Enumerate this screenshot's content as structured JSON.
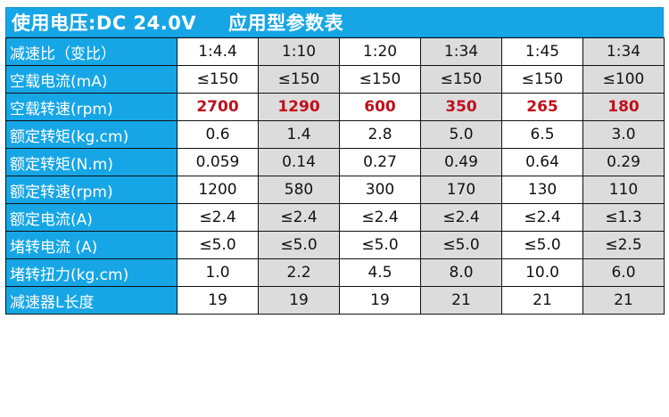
{
  "header": {
    "voltage_label": "使用电压:DC 24.0V",
    "table_title": "应用型参数表"
  },
  "rows": [
    {
      "label": "减速比（变比）",
      "values": [
        "1:4.4",
        "1:10",
        "1:20",
        "1:34",
        "1:45",
        "1:34"
      ]
    },
    {
      "label": "空载电流(mA)",
      "values": [
        "≤150",
        "≤150",
        "≤150",
        "≤150",
        "≤150",
        "≤100"
      ]
    },
    {
      "label": "空载转速(rpm)",
      "values": [
        "2700",
        "1290",
        "600",
        "350",
        "265",
        "180"
      ]
    },
    {
      "label": "额定转矩(kg.cm)",
      "values": [
        "0.6",
        "1.4",
        "2.8",
        "5.0",
        "6.5",
        "3.0"
      ]
    },
    {
      "label": "额定转矩(N.m)",
      "values": [
        "0.059",
        "0.14",
        "0.27",
        "0.49",
        "0.64",
        "0.29"
      ]
    },
    {
      "label": "额定转速(rpm)",
      "values": [
        "1200",
        "580",
        "300",
        "170",
        "130",
        "110"
      ]
    },
    {
      "label": "额定电流(A)",
      "values": [
        "≤2.4",
        "≤2.4",
        "≤2.4",
        "≤2.4",
        "≤2.4",
        "≤1.3"
      ]
    },
    {
      "label": "堵转电流 (A)",
      "values": [
        "≤5.0",
        "≤5.0",
        "≤5.0",
        "≤5.0",
        "≤5.0",
        "≤2.5"
      ]
    },
    {
      "label": "堵转扭力(kg.cm)",
      "values": [
        "1.0",
        "2.2",
        "4.5",
        "8.0",
        "10.0",
        "6.0"
      ]
    },
    {
      "label": "减速器L长度",
      "values": [
        "19",
        "19",
        "19",
        "21",
        "21",
        "21"
      ]
    }
  ],
  "highlight_color": "#c0101c",
  "header_color": "#16a6e6"
}
